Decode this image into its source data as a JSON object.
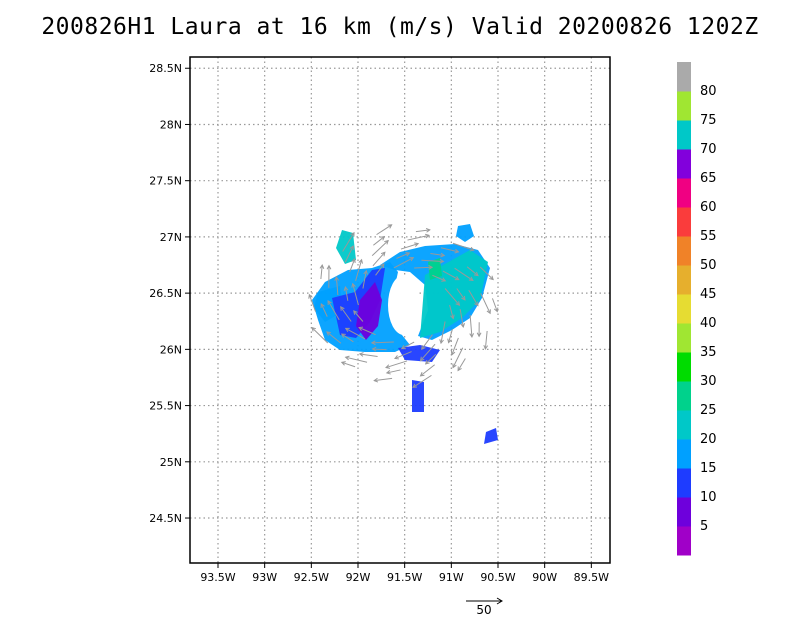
{
  "title": "200826H1 Laura at 16 km (m/s) Valid 20200826  1202Z",
  "chart_data": {
    "type": "heatmap",
    "title": "200826H1 Laura at 16 km (m/s) Valid 20200826  1202Z",
    "xlabel": "",
    "ylabel": "",
    "xlim": [
      -93.8,
      -89.3
    ],
    "ylim": [
      24.1,
      28.6
    ],
    "x_ticks": [
      -93.5,
      -93,
      -92.5,
      -92,
      -91.5,
      -91,
      -90.5,
      -90,
      -89.5
    ],
    "x_tick_labels": [
      "93.5W",
      "93W",
      "92.5W",
      "92W",
      "91.5W",
      "91W",
      "90.5W",
      "90W",
      "89.5W"
    ],
    "y_ticks": [
      24.5,
      25,
      25.5,
      26,
      26.5,
      27,
      27.5,
      28,
      28.5
    ],
    "y_tick_labels": [
      "24.5N",
      "25N",
      "25.5N",
      "26N",
      "26.5N",
      "27N",
      "27.5N",
      "28N",
      "28.5N"
    ],
    "grid": true,
    "colorbar": {
      "tick_labels": [
        "5",
        "10",
        "15",
        "20",
        "25",
        "30",
        "35",
        "40",
        "45",
        "50",
        "55",
        "60",
        "65",
        "70",
        "75",
        "80"
      ],
      "colors": [
        "#a000c8",
        "#6e00dc",
        "#1e3cff",
        "#00a0ff",
        "#00c8c8",
        "#00d28c",
        "#00dc00",
        "#a0e632",
        "#e6dc32",
        "#e6af2d",
        "#f08228",
        "#fa3c3c",
        "#f00082",
        "#8200dc",
        "#00c8c8",
        "#a0e632",
        "#aaaaaa"
      ]
    },
    "reference_vector": {
      "label": "50",
      "value": 50
    }
  }
}
